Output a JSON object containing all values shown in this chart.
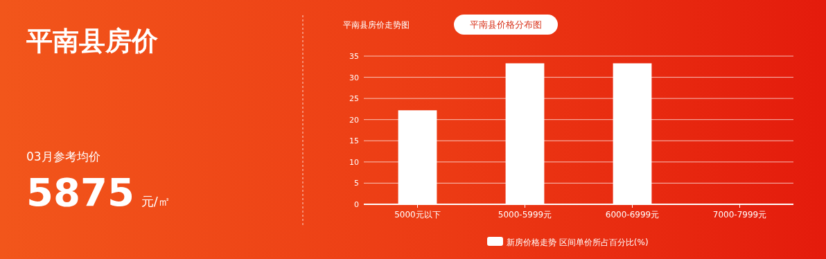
{
  "chart_data": [
    {
      "type": "other",
      "title": "平南县房价",
      "annotations": [
        "03月参考均价",
        "5875",
        "元/㎡"
      ]
    },
    {
      "type": "bar",
      "annotations": [
        "平南县房价走势图",
        "平南县价格分布图"
      ],
      "categories": [
        "5000元以下",
        "5000-5999元",
        "6000-6999元",
        "7000-7999元"
      ],
      "series": [
        {
          "name": "新房价格走势 区间单价所占百分比(%)",
          "color": "#ffffff",
          "values": [
            22.2,
            33.3,
            33.3,
            0
          ]
        }
      ],
      "ylim": [
        0,
        35
      ],
      "yticks": [
        0,
        5,
        10,
        15,
        20,
        25,
        30,
        35
      ],
      "grid": "y",
      "legend": "bottom"
    }
  ]
}
